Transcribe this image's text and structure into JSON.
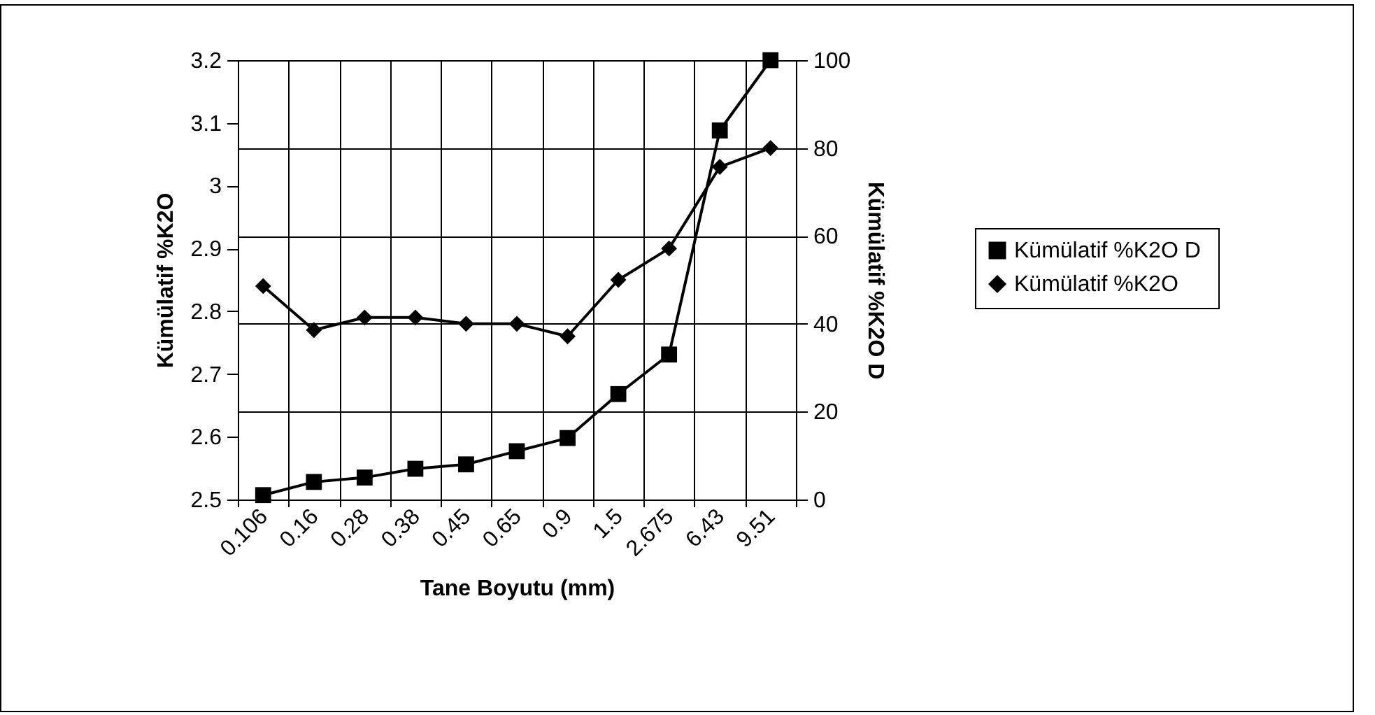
{
  "chart_data": {
    "type": "line",
    "xlabel": "Tane Boyutu (mm)",
    "ylabel": "Kümülatif  %K2O",
    "y2label": "Kümülatif  %K2O D",
    "categories": [
      "0.106",
      "0.16",
      "0.28",
      "0.38",
      "0.45",
      "0.65",
      "0.9",
      "1.5",
      "2.675",
      "6.43",
      "9.51"
    ],
    "series": [
      {
        "name": "Kümülatif  %K2O D",
        "color": "#000000",
        "axis": "y2",
        "marker": "square",
        "values": [
          1,
          4,
          5,
          7,
          8,
          11,
          14,
          24,
          33,
          84,
          100
        ]
      },
      {
        "name": "Kümülatif  %K2O",
        "color": "#000000",
        "marker": "diamond",
        "values": [
          2.84,
          2.77,
          2.79,
          2.79,
          2.78,
          2.78,
          2.76,
          2.85,
          2.9,
          3.03,
          3.06
        ]
      }
    ],
    "ylim": [
      2.5,
      3.2
    ],
    "yticks": [
      2.5,
      2.6,
      2.7,
      2.8,
      2.9,
      3,
      3.1,
      3.2
    ],
    "y2lim": [
      0,
      100
    ],
    "y2ticks": [
      0,
      20,
      40,
      60,
      80,
      100
    ],
    "grid": true,
    "legend": "right"
  }
}
